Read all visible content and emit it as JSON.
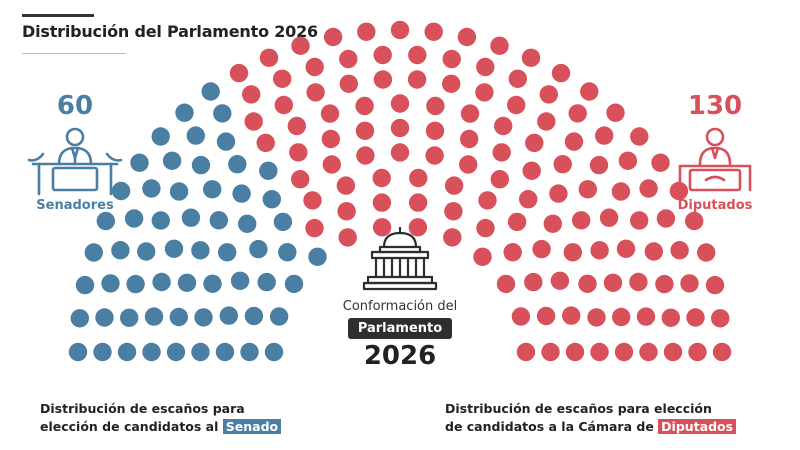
{
  "title": "Distribución del Parlamento 2026",
  "senate": {
    "count": "60",
    "label": "Senadores",
    "color": "#4a7fa3",
    "icon": "senator-podium-icon"
  },
  "deputies": {
    "count": "130",
    "label": "Diputados",
    "color": "#d8505a",
    "icon": "deputy-podium-icon"
  },
  "center": {
    "line1": "Conformación del",
    "badge": "Parlamento",
    "year": "2026",
    "icon": "parliament-building-icon"
  },
  "captions": {
    "left_prefix": "Distribución de escaños para",
    "left_line2": "elección de candidatos al",
    "left_highlight": "Senado",
    "right_prefix": "Distribución de escaños para elección",
    "right_line2": "de candidatos a la Cámara de",
    "right_highlight": "Diputados"
  },
  "chart_data": {
    "type": "hemicycle",
    "total_seats": 190,
    "series": [
      {
        "name": "Senadores",
        "value": 60,
        "color": "#4a7fa3"
      },
      {
        "name": "Diputados",
        "value": 130,
        "color": "#d8505a"
      }
    ]
  }
}
